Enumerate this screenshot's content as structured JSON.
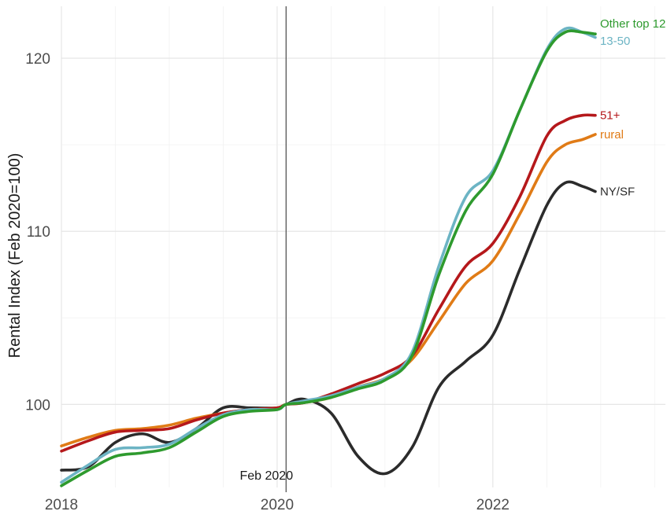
{
  "chart_data": {
    "type": "line",
    "title": "",
    "xlabel": "",
    "ylabel": "Rental Index (Feb 2020=100)",
    "xlim": [
      2018,
      2023.6
    ],
    "ylim": [
      95.2,
      123
    ],
    "x_ticks": [
      {
        "value": 2018,
        "label": "2018"
      },
      {
        "value": 2020,
        "label": "2020"
      },
      {
        "value": 2022,
        "label": "2022"
      }
    ],
    "y_ticks": [
      {
        "value": 100,
        "label": "100"
      },
      {
        "value": 110,
        "label": "110"
      },
      {
        "value": 120,
        "label": "120"
      }
    ],
    "grid": true,
    "legend": "direct labels at line ends",
    "annotation": {
      "x": 2020.083,
      "label": "Feb 2020"
    },
    "series": [
      {
        "name": "NY/SF",
        "color": "#2b2b2b",
        "x": [
          2018.0,
          2018.25,
          2018.5,
          2018.75,
          2019.0,
          2019.25,
          2019.5,
          2019.75,
          2020.0,
          2020.083,
          2020.25,
          2020.5,
          2020.75,
          2021.0,
          2021.25,
          2021.5,
          2021.75,
          2022.0,
          2022.25,
          2022.5,
          2022.67,
          2022.83,
          2022.95
        ],
        "y": [
          96.2,
          96.4,
          97.8,
          98.3,
          97.8,
          98.6,
          99.8,
          99.8,
          99.8,
          100.0,
          100.3,
          99.5,
          97.0,
          96.0,
          97.5,
          101.0,
          102.5,
          104.0,
          107.8,
          111.5,
          112.8,
          112.6,
          112.3
        ]
      },
      {
        "name": "rural",
        "color": "#e07b16",
        "x": [
          2018.0,
          2018.25,
          2018.5,
          2018.75,
          2019.0,
          2019.25,
          2019.5,
          2019.75,
          2020.0,
          2020.083,
          2020.25,
          2020.5,
          2020.75,
          2021.0,
          2021.25,
          2021.5,
          2021.75,
          2022.0,
          2022.25,
          2022.5,
          2022.67,
          2022.83,
          2022.95
        ],
        "y": [
          97.6,
          98.1,
          98.5,
          98.6,
          98.8,
          99.2,
          99.5,
          99.7,
          99.8,
          100.0,
          100.1,
          100.4,
          101.0,
          101.5,
          102.6,
          104.8,
          107.0,
          108.3,
          111.0,
          114.0,
          115.0,
          115.3,
          115.6
        ]
      },
      {
        "name": "51+",
        "color": "#b5181b",
        "x": [
          2018.0,
          2018.25,
          2018.5,
          2018.75,
          2019.0,
          2019.25,
          2019.5,
          2019.75,
          2020.0,
          2020.083,
          2020.25,
          2020.5,
          2020.75,
          2021.0,
          2021.25,
          2021.5,
          2021.75,
          2022.0,
          2022.25,
          2022.5,
          2022.67,
          2022.83,
          2022.95
        ],
        "y": [
          97.3,
          97.9,
          98.4,
          98.5,
          98.6,
          99.1,
          99.5,
          99.7,
          99.8,
          100.0,
          100.1,
          100.6,
          101.2,
          101.8,
          102.8,
          105.5,
          108.0,
          109.3,
          112.0,
          115.5,
          116.4,
          116.7,
          116.7
        ]
      },
      {
        "name": "13-50",
        "color": "#6cb4c4",
        "x": [
          2018.0,
          2018.25,
          2018.5,
          2018.75,
          2019.0,
          2019.25,
          2019.5,
          2019.75,
          2020.0,
          2020.083,
          2020.25,
          2020.5,
          2020.75,
          2021.0,
          2021.25,
          2021.5,
          2021.75,
          2022.0,
          2022.25,
          2022.5,
          2022.67,
          2022.83,
          2022.95
        ],
        "y": [
          95.5,
          96.5,
          97.4,
          97.5,
          97.7,
          98.6,
          99.4,
          99.7,
          99.7,
          100.0,
          100.2,
          100.5,
          101.0,
          101.5,
          103.0,
          108.0,
          112.0,
          113.5,
          117.0,
          120.5,
          121.7,
          121.5,
          121.2
        ]
      },
      {
        "name": "Other top 12",
        "color": "#2e9a2e",
        "x": [
          2018.0,
          2018.25,
          2018.5,
          2018.75,
          2019.0,
          2019.25,
          2019.5,
          2019.75,
          2020.0,
          2020.083,
          2020.25,
          2020.5,
          2020.75,
          2021.0,
          2021.25,
          2021.5,
          2021.75,
          2022.0,
          2022.25,
          2022.5,
          2022.67,
          2022.83,
          2022.95
        ],
        "y": [
          95.3,
          96.2,
          97.0,
          97.2,
          97.5,
          98.4,
          99.3,
          99.6,
          99.7,
          100.0,
          100.1,
          100.4,
          100.9,
          101.4,
          102.8,
          107.5,
          111.2,
          113.3,
          117.0,
          120.4,
          121.5,
          121.5,
          121.4
        ]
      }
    ],
    "series_label_positions": [
      {
        "name": "Other top 12",
        "y": 122.0
      },
      {
        "name": "13-50",
        "y": 121.0
      },
      {
        "name": "51+",
        "y": 116.7
      },
      {
        "name": "rural",
        "y": 115.6
      },
      {
        "name": "NY/SF",
        "y": 112.3
      }
    ]
  }
}
